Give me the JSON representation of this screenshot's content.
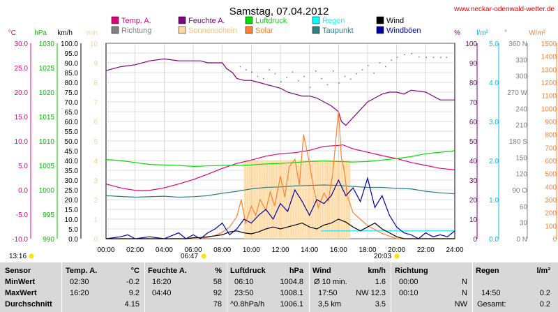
{
  "header": {
    "title": "Samstag, 07.04.2012",
    "url": "www.neckar-odenwald-wetter.de"
  },
  "legend": [
    {
      "label": "Temp. A.",
      "color": "#e0007f"
    },
    {
      "label": "Feuchte A.",
      "color": "#800080"
    },
    {
      "label": "Luftdruck",
      "color": "#00e000"
    },
    {
      "label": "Regen",
      "color": "#00ffff"
    },
    {
      "label": "Wind",
      "color": "#000000"
    },
    {
      "label": "Richtung",
      "color": "#808080"
    },
    {
      "label": "Sonnenschein",
      "color": "#ffd8a0"
    },
    {
      "label": "Solar",
      "color": "#ff8030"
    },
    {
      "label": "Taupunkt",
      "color": "#308080"
    },
    {
      "label": "Windböen",
      "color": "#0000a0"
    }
  ],
  "axes_headers": {
    "temp": "°C",
    "hpa": "hPa",
    "kmh": "km/h",
    "min": "min",
    "pct": "%",
    "lm2": "l/m²",
    "deg": "°",
    "wm2": "W/m²"
  },
  "axes_colors": {
    "temp": "#e0007f",
    "hpa": "#00c000",
    "kmh": "#000000",
    "min": "#ffd080",
    "pct": "#800080",
    "lm2": "#00c0e0",
    "deg": "#808080",
    "wm2": "#ff8030"
  },
  "times": {
    "sunrise": "06:47",
    "sunset": "20:03",
    "left_mark": "13:16"
  },
  "chart_data": {
    "type": "line",
    "x_ticks": [
      "00:00",
      "02:00",
      "04:00",
      "06:00",
      "08:00",
      "10:00",
      "12:00",
      "14:00",
      "16:00",
      "18:00",
      "20:00",
      "22:00",
      "24:00"
    ],
    "axes": {
      "temp": {
        "ticks": [
          "30.0",
          "25.0",
          "20.0",
          "15.0",
          "10.0",
          "5.0",
          "0.0",
          "-5.0",
          "-10.0"
        ]
      },
      "hpa": {
        "ticks": [
          "1030",
          "1025",
          "1020",
          "1015",
          "1010",
          "1005",
          "1000",
          "995",
          "990"
        ]
      },
      "kmh": {
        "ticks": [
          "100.0",
          "95.0",
          "90.0",
          "85.0",
          "80.0",
          "75.0",
          "70.0",
          "65.0",
          "60.0",
          "55.0",
          "50.0",
          "45.0",
          "40.0",
          "35.0",
          "30.0",
          "25.0",
          "20.0",
          "15.0",
          "10.0",
          "5.0",
          "0.0"
        ]
      },
      "min": {
        "ticks": [
          "10",
          "9",
          "8",
          "7",
          "6",
          "5",
          "4",
          "3",
          "2",
          "1",
          "0"
        ]
      },
      "pct": {
        "ticks": [
          "100",
          "90",
          "80",
          "70",
          "60",
          "50",
          "40",
          "30",
          "20",
          "10",
          "0"
        ]
      },
      "lm2": {
        "ticks": [
          "5.0",
          "4.0",
          "3.0",
          "2.0",
          "1.0",
          "0.0"
        ]
      },
      "deg": {
        "ticks": [
          "360 N",
          "330",
          "300",
          "270 W",
          "240",
          "210",
          "180 S",
          "150",
          "120",
          "90 O",
          "60",
          "30",
          "0 N"
        ]
      },
      "wm2": {
        "ticks": [
          "1500",
          "1400",
          "1300",
          "1200",
          "1100",
          "1000",
          "900",
          "800",
          "700",
          "600",
          "500",
          "400",
          "300",
          "200",
          "100",
          "0"
        ]
      }
    },
    "series": [
      {
        "name": "Feuchte A.",
        "axis": "pct",
        "color": "#800080",
        "x": [
          0,
          1,
          2,
          3,
          4,
          5,
          6,
          6.5,
          7,
          7.5,
          8,
          8.3,
          8.7,
          9,
          9.5,
          10,
          10.5,
          11,
          11.5,
          12,
          12.5,
          13,
          13.5,
          14,
          14.5,
          15,
          15.5,
          16,
          16.2,
          16.5,
          17,
          17.5,
          18,
          18.5,
          19,
          19.5,
          20,
          20.5,
          21,
          22,
          23,
          24
        ],
        "y": [
          86,
          88,
          89,
          91,
          92,
          91,
          91,
          91,
          90,
          90,
          90,
          87,
          85,
          82,
          81,
          81,
          80,
          79,
          78,
          77,
          75,
          74,
          73,
          73,
          72,
          70,
          68,
          65,
          60,
          58,
          62,
          66,
          70,
          72,
          74,
          75,
          75,
          74,
          76,
          75,
          71,
          71
        ]
      },
      {
        "name": "Temp. A.",
        "axis": "temp",
        "color": "#e0007f",
        "x": [
          0,
          1,
          2,
          2.5,
          3,
          4,
          5,
          6,
          7,
          8,
          9,
          10,
          11,
          12,
          13,
          14,
          15,
          16,
          16.3,
          17,
          18,
          19,
          20,
          21,
          22,
          23,
          24
        ],
        "y": [
          1.2,
          0.4,
          -0.1,
          -0.2,
          -0.1,
          0.4,
          1.2,
          2.1,
          3.2,
          4.4,
          5.4,
          6.1,
          6.9,
          7.4,
          7.6,
          8.1,
          8.9,
          9.1,
          9.2,
          8.4,
          7.7,
          7.0,
          6.4,
          5.6,
          5.0,
          4.4,
          4.1
        ]
      },
      {
        "name": "Luftdruck",
        "axis": "hpa",
        "color": "#00e000",
        "x": [
          0,
          1,
          2,
          3,
          4,
          5,
          6,
          6.2,
          7,
          8,
          9,
          10,
          11,
          12,
          13,
          14,
          15,
          16,
          17,
          18,
          19,
          20,
          21,
          22,
          23,
          23.8,
          24
        ],
        "y": [
          1006.2,
          1006.0,
          1005.6,
          1005.2,
          1005.1,
          1005.0,
          1004.8,
          1004.8,
          1004.9,
          1005.0,
          1005.0,
          1005.1,
          1005.3,
          1005.4,
          1005.6,
          1005.8,
          1005.9,
          1005.8,
          1005.7,
          1005.8,
          1006.1,
          1006.4,
          1006.8,
          1007.4,
          1007.7,
          1007.9,
          1008.1
        ]
      },
      {
        "name": "Taupunkt",
        "axis": "temp",
        "color": "#308080",
        "x": [
          0,
          2,
          4,
          5,
          6,
          7,
          8,
          9,
          10,
          11,
          12,
          13,
          14,
          15,
          16,
          17,
          18,
          19,
          20,
          21,
          22,
          23,
          24
        ],
        "y": [
          -1.2,
          -1.5,
          -1.3,
          -1.5,
          -1.4,
          -1.2,
          -0.7,
          -0.3,
          0.2,
          0.5,
          0.6,
          0.8,
          0.9,
          1.0,
          0.9,
          0.7,
          0.5,
          0.5,
          0.3,
          0.2,
          -0.3,
          -0.6,
          -0.8
        ]
      },
      {
        "name": "Solar",
        "axis": "wm2",
        "color": "#ff8030",
        "x": [
          0,
          6.5,
          7,
          7.5,
          8,
          8.5,
          9,
          9.3,
          9.6,
          10,
          10.3,
          10.6,
          11,
          11.3,
          11.6,
          12,
          12.3,
          12.6,
          13,
          13.3,
          13.6,
          14,
          14.3,
          14.6,
          15,
          15.3,
          15.6,
          16,
          16.2,
          16.4,
          16.6,
          17,
          17.5,
          18,
          18.5,
          19,
          19.5,
          20,
          20.5,
          24
        ],
        "y": [
          0,
          0,
          10,
          25,
          50,
          90,
          170,
          300,
          120,
          250,
          180,
          300,
          220,
          360,
          250,
          480,
          320,
          550,
          610,
          410,
          800,
          580,
          380,
          240,
          350,
          290,
          500,
          980,
          620,
          520,
          330,
          200,
          150,
          100,
          70,
          40,
          20,
          0,
          0,
          0
        ]
      },
      {
        "name": "Wind",
        "axis": "kmh",
        "color": "#000000",
        "x": [
          0,
          5.5,
          6,
          6.5,
          7,
          7.5,
          8,
          8.5,
          9,
          9.5,
          10,
          10.5,
          11,
          11.5,
          12,
          12.5,
          13,
          13.5,
          14,
          14.5,
          15,
          15.5,
          16,
          16.5,
          17,
          17.5,
          18,
          18.5,
          19,
          19.5,
          20,
          20.5,
          21,
          22,
          23,
          24
        ],
        "y": [
          0,
          0,
          0.5,
          0.6,
          1,
          1.5,
          2,
          3.5,
          4,
          3,
          2.5,
          3.5,
          5,
          6,
          5,
          6,
          7,
          8,
          6,
          5,
          7,
          8,
          10,
          8.5,
          6,
          4,
          6,
          8,
          5,
          3,
          1,
          0,
          0,
          0,
          0,
          0
        ]
      },
      {
        "name": "Windböen",
        "axis": "kmh",
        "color": "#0000a0",
        "x": [
          0,
          1,
          1.5,
          2,
          3,
          4,
          5,
          5.5,
          6,
          6.5,
          7,
          7.5,
          8,
          8.5,
          9,
          9.5,
          10,
          10.5,
          11,
          11.5,
          12,
          12.5,
          13,
          13.5,
          14,
          14.5,
          15,
          15.5,
          16,
          16.5,
          17,
          17.5,
          18,
          18.5,
          19,
          19.5,
          20,
          20.5,
          21,
          21.5,
          22,
          22.5,
          23,
          23.5,
          24
        ],
        "y": [
          0,
          1,
          2,
          0,
          1,
          0,
          3,
          0,
          2,
          0,
          3,
          5,
          8,
          2,
          5,
          10,
          8,
          12,
          15,
          10,
          18,
          14,
          25,
          19,
          12,
          20,
          18,
          22,
          30,
          22,
          26,
          19,
          31,
          16,
          22,
          12,
          6,
          3,
          2,
          0,
          3,
          1,
          2,
          1,
          4
        ]
      }
    ],
    "sunshine": {
      "axis": "min",
      "start_hour": 9.5,
      "end_hour": 16.7,
      "level_minutes": 4
    },
    "rain": {
      "axis": "lm2",
      "x": [
        14.8,
        24
      ],
      "y": [
        0.2,
        0.2
      ]
    }
  },
  "summary": {
    "headers": {
      "sensor": "Sensor",
      "temp": "Temp. A.",
      "temp_unit": "°C",
      "feuchte": "Feuchte A.",
      "feuchte_unit": "%",
      "luftdruck": "Luftdruck",
      "luftdruck_unit": "hPa",
      "wind": "Wind",
      "wind_unit": "km/h",
      "richtung": "Richtung",
      "regen": "Regen",
      "regen_unit": "l/m²"
    },
    "rows": [
      {
        "label": "MinWert",
        "temp_time": "02:30",
        "temp_val": "-0.2",
        "feuchte_time": "16:20",
        "feuchte_val": "58",
        "ld_time": "06:10",
        "ld_val": "1004.8",
        "wind_label": "Ø 10 min.",
        "wind_val": "1.6",
        "dir_time": "00:00",
        "dir_val": "N",
        "rain_label": "",
        "rain_val": ""
      },
      {
        "label": "MaxWert",
        "temp_time": "16:20",
        "temp_val": "9.2",
        "feuchte_time": "04:40",
        "feuchte_val": "92",
        "ld_time": "23:50",
        "ld_val": "1008.1",
        "wind_label": "17:50",
        "wind_val": "NW 12.3",
        "dir_time": "00:10",
        "dir_val": "N",
        "rain_label": "14:50",
        "rain_val": "0.2"
      },
      {
        "label": "Durchschnitt",
        "temp_time": "",
        "temp_val": "4.15",
        "feuchte_time": "",
        "feuchte_val": "78",
        "ld_time": "^0.8hPa/h",
        "ld_val": "1006.1",
        "wind_label": "3,5 km",
        "wind_val": "3.5",
        "dir_time": "",
        "dir_val": "NW",
        "rain_label": "Gesamt:",
        "rain_val": "0.2"
      }
    ]
  }
}
